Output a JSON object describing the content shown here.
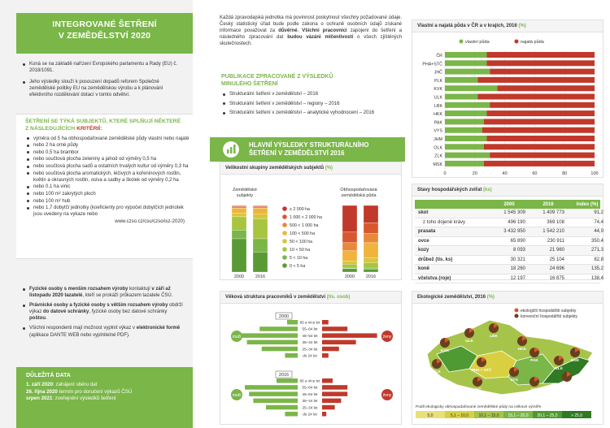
{
  "col1": {
    "title_line1": "INTEGROVANÉ ŠETŘENÍ",
    "title_line2": "V ZEMĚDĚLSTVÍ 2020",
    "intro": [
      "Koná se na základě nařízení Evropského parlamentu a Rady (EU) č. 2018/1091.",
      "Jeho výsledky slouží k posouzení dopadů reforem Společné zemědělské politiky EU na zemědělskou výrobu a k plánování efektivního rozdělování dotací v tomto odvětví."
    ],
    "criteria_title_1": "ŠETŘENÍ SE TÝKÁ SUBJEKTŮ, KTERÉ SPLŇUJÍ NĚKTERÉ",
    "criteria_title_2": "Z NÁSLEDUJÍCÍCH ",
    "criteria_title_red": "KRITÉRIÍ:",
    "criteria": [
      "výměra od 5 ha obhospodařované zemědělské půdy vlastní nebo najaté",
      "nebo 2 ha orné půdy",
      "nebo 0,5 ha brambor",
      "nebo součtová plocha zeleniny a jahod od výměry 0,5 ha",
      "nebo součtová plocha sadů a ostatních trvalých kultur od výměry 0,3 ha",
      "nebo součtová plocha aromatických, léčivých a kořeninových rostlin, květin a okrasných rostlin, osiva a sadby a školek od výměry 0,2 ha",
      "nebo 0,1 ha vinic",
      "nebo 100 m² zakrytých ploch",
      "nebo 100 m² hub",
      "nebo 1,7 dobytčí jednotky (koeficienty pro výpočet dobytčích jednotek jsou uvedeny na vykaze nebo"
    ],
    "criteria_link": "www.czso.cz/csu/czso/isz-2020)",
    "persons": [
      {
        "b1": "Fyzické osoby s menším rozsahem výroby",
        "t1": " kontaktují ",
        "b2": "v září až listopadu 2020 tazatelé",
        "t2": ", kteří se prokáží průkazem tazatele ČSÚ."
      },
      {
        "b1": "Právnické osoby a fyzické osoby s větším rozsahem výroby",
        "t1": " obdrží výkaz ",
        "b2": "do datové schránky",
        "t2": ", fyzické osoby bez datové schránky ",
        "b3": "poštou",
        "t3": "."
      },
      {
        "b1": "",
        "t1": "Všichni respondenti mají možnost vyplnit výkaz v ",
        "b2": "elektronické formě",
        "t2": " (aplikace DANTE WEB nebo vyplnitelné PDF).",
        "b3": "",
        "t3": ""
      }
    ],
    "dates_title": "DŮLEŽITÁ DATA",
    "dates": [
      {
        "d": "1. září 2020",
        "t": ": zahájení sběru dat"
      },
      {
        "d": "26. října 2020",
        "t": " termín pro doručení výkazů ČSÚ"
      },
      {
        "d": "srpen 2021",
        "t": ": zveřejnění výsledků šetření"
      }
    ]
  },
  "col2": {
    "p1": "Každá zpravodajská jednotka má povinnost poskytnout všechny požadované údaje. Český statistický úřad bude podle zákona o ochraně osobních údajů získané informace považovat za ",
    "p1_b1": "důvěrné",
    "p1_t2": ". ",
    "p1_b2": "Všichni pracovníci",
    "p1_t3": " zapojení do šetření a následného zpracování dat ",
    "p1_b3": "budou vázáni mlčenlivostí",
    "p1_t4": " o všech zjištěných skutečnostech.",
    "pub_title_1": "PUBLIKACE ZPRACOVANÉ Z VÝSLEDKŮ",
    "pub_title_2": "MINULÉHO ŠETŘENÍ",
    "pubs": [
      "Strukturální šetření v zemědělství – 2016",
      "Strukturální šetření v zemědělství – regiony – 2016",
      "Strukturální šetření v zemědělství – analytické vyhodnocení – 2016"
    ],
    "main_title_1": "HLAVNÍ VÝSLEDKY STRUKTURÁLNÍHO",
    "main_title_2": "ŠETŘENÍ V ZEMĚDĚLSTVÍ 2016",
    "size_title": "Velikostní skupiny zemědělských subjektů",
    "size_unit": "(%)",
    "size_label_left": "Zemědělské subjekty",
    "size_label_right": "Obhospodařovaná zemědělská půda",
    "size_years": [
      "2000",
      "2016"
    ],
    "size_legend": [
      "≥ 2 000 ha",
      "1 000 < 2 000 ha",
      "500 < 1 000 ha",
      "100 < 500 ha",
      "50 < 100 ha",
      "10 < 50 ha",
      "5 < 10 ha",
      "0 < 5 ha"
    ],
    "age_title": "Věková struktura pracovníků v zemědělství",
    "age_unit": "(tis. osob)",
    "age_men": "muži",
    "age_women": "ženy",
    "age_groups": [
      "65 a více let",
      "55–64 let",
      "45–54 let",
      "35–44 let",
      "25–34 let",
      "do 24 let"
    ],
    "age_years": [
      "2000",
      "2016"
    ]
  },
  "chart_data": [
    {
      "type": "bar",
      "title": "Vlastní a najatá půda v ČR a v krajích, 2016",
      "unit": "(%)",
      "categories": [
        "ČR",
        "PHA+STČ",
        "JHČ",
        "PLK",
        "KVK",
        "ULK",
        "LBK",
        "HKK",
        "PAK",
        "VYS",
        "JHM",
        "OLK",
        "ZLK",
        "MSK"
      ],
      "series": [
        {
          "name": "vlastní půda",
          "values": [
            28,
            28,
            30,
            22,
            35,
            22,
            30,
            28,
            26,
            25,
            28,
            26,
            30,
            26
          ]
        },
        {
          "name": "najatá půda",
          "values": [
            72,
            72,
            70,
            78,
            65,
            78,
            70,
            72,
            74,
            75,
            72,
            74,
            70,
            74
          ]
        }
      ],
      "ylim": [
        0,
        100
      ],
      "ticks": [
        0,
        20,
        40,
        60,
        80,
        100
      ]
    },
    {
      "type": "table",
      "title": "Stavy hospodářských zvířat",
      "unit": "(ks)",
      "columns": [
        "",
        "2000",
        "2016",
        "Index (%)"
      ],
      "rows": [
        [
          "skot",
          "1 545 309",
          "1 409 773",
          "91,2"
        ],
        [
          "z toho dojené krávy",
          "496 190",
          "369 108",
          "74,4"
        ],
        [
          "prasata",
          "3 432 950",
          "1 542 210",
          "44,9"
        ],
        [
          "ovce",
          "65 890",
          "230 911",
          "350,4"
        ],
        [
          "kozy",
          "8 093",
          "21 960",
          "271,3"
        ],
        [
          "drůbež (tis. ks)",
          "30 321",
          "25 104",
          "82,8"
        ],
        [
          "koně",
          "18 260",
          "24 696",
          "135,2"
        ],
        [
          "včelstva (roje)",
          "12 197",
          "16 875",
          "138,4"
        ]
      ]
    },
    {
      "type": "bar",
      "title": "Velikostní skupiny zemědělských subjektů",
      "categories": [
        "Zemědělské subjekty 2000",
        "Zemědělské subjekty 2016",
        "Obhospodařovaná zemědělská půda 2000",
        "Obhospodařovaná zemědělská půda 2016"
      ],
      "series_names": [
        "≥ 2 000 ha",
        "1 000 < 2 000 ha",
        "500 < 1 000 ha",
        "100 < 500 ha",
        "50 < 100 ha",
        "10 < 50 ha",
        "5 < 10 ha",
        "0 < 5 ha"
      ],
      "stacks": [
        [
          1,
          1,
          2,
          8,
          5,
          20,
          13,
          50
        ],
        [
          1,
          1,
          2,
          9,
          7,
          30,
          20,
          30
        ],
        [
          40,
          16,
          12,
          16,
          4,
          6,
          1,
          5
        ],
        [
          26,
          16,
          14,
          23,
          7,
          8,
          2,
          4
        ]
      ]
    },
    {
      "type": "bar",
      "title": "Věková struktura pracovníků v zemědělství",
      "unit": "(tis. osob)",
      "categories": [
        "65 a více let",
        "55–64 let",
        "45–54 let",
        "35–44 let",
        "25–34 let",
        "do 24 let"
      ],
      "series": [
        {
          "name": "muži 2000",
          "values": [
            5,
            18,
            30,
            24,
            17,
            6
          ]
        },
        {
          "name": "ženy 2000",
          "values": [
            3,
            12,
            26,
            16,
            8,
            3
          ]
        },
        {
          "name": "muži 2016",
          "values": [
            10,
            25,
            23,
            21,
            15,
            6
          ]
        },
        {
          "name": "ženy 2016",
          "values": [
            5,
            12,
            12,
            9,
            6,
            2
          ]
        }
      ]
    },
    {
      "type": "other",
      "title": "Ekologické zemědělství, 2016",
      "unit": "(%)",
      "legend": [
        "ekologičtí hospodářští subjekty",
        "konvenční hospodářští subjekty"
      ],
      "regions": [
        "KVK",
        "ULK",
        "LBK",
        "PLK",
        "PHA + STČ",
        "HKK",
        "PAK",
        "VYS",
        "JHČ",
        "JHM",
        "OLK",
        "MSK",
        "ZLK"
      ],
      "scale_title": "Podíl ekologicky obhospodařované zemědělské půdy na celkové výměře",
      "scale": [
        "5,0",
        "5,1 – 10,0",
        "10,1 – 15,0",
        "15,1 – 20,0",
        "20,1 – 25,0",
        "> 25,0"
      ]
    }
  ],
  "colors": {
    "green": "#7ab648",
    "red": "#c0392b"
  }
}
